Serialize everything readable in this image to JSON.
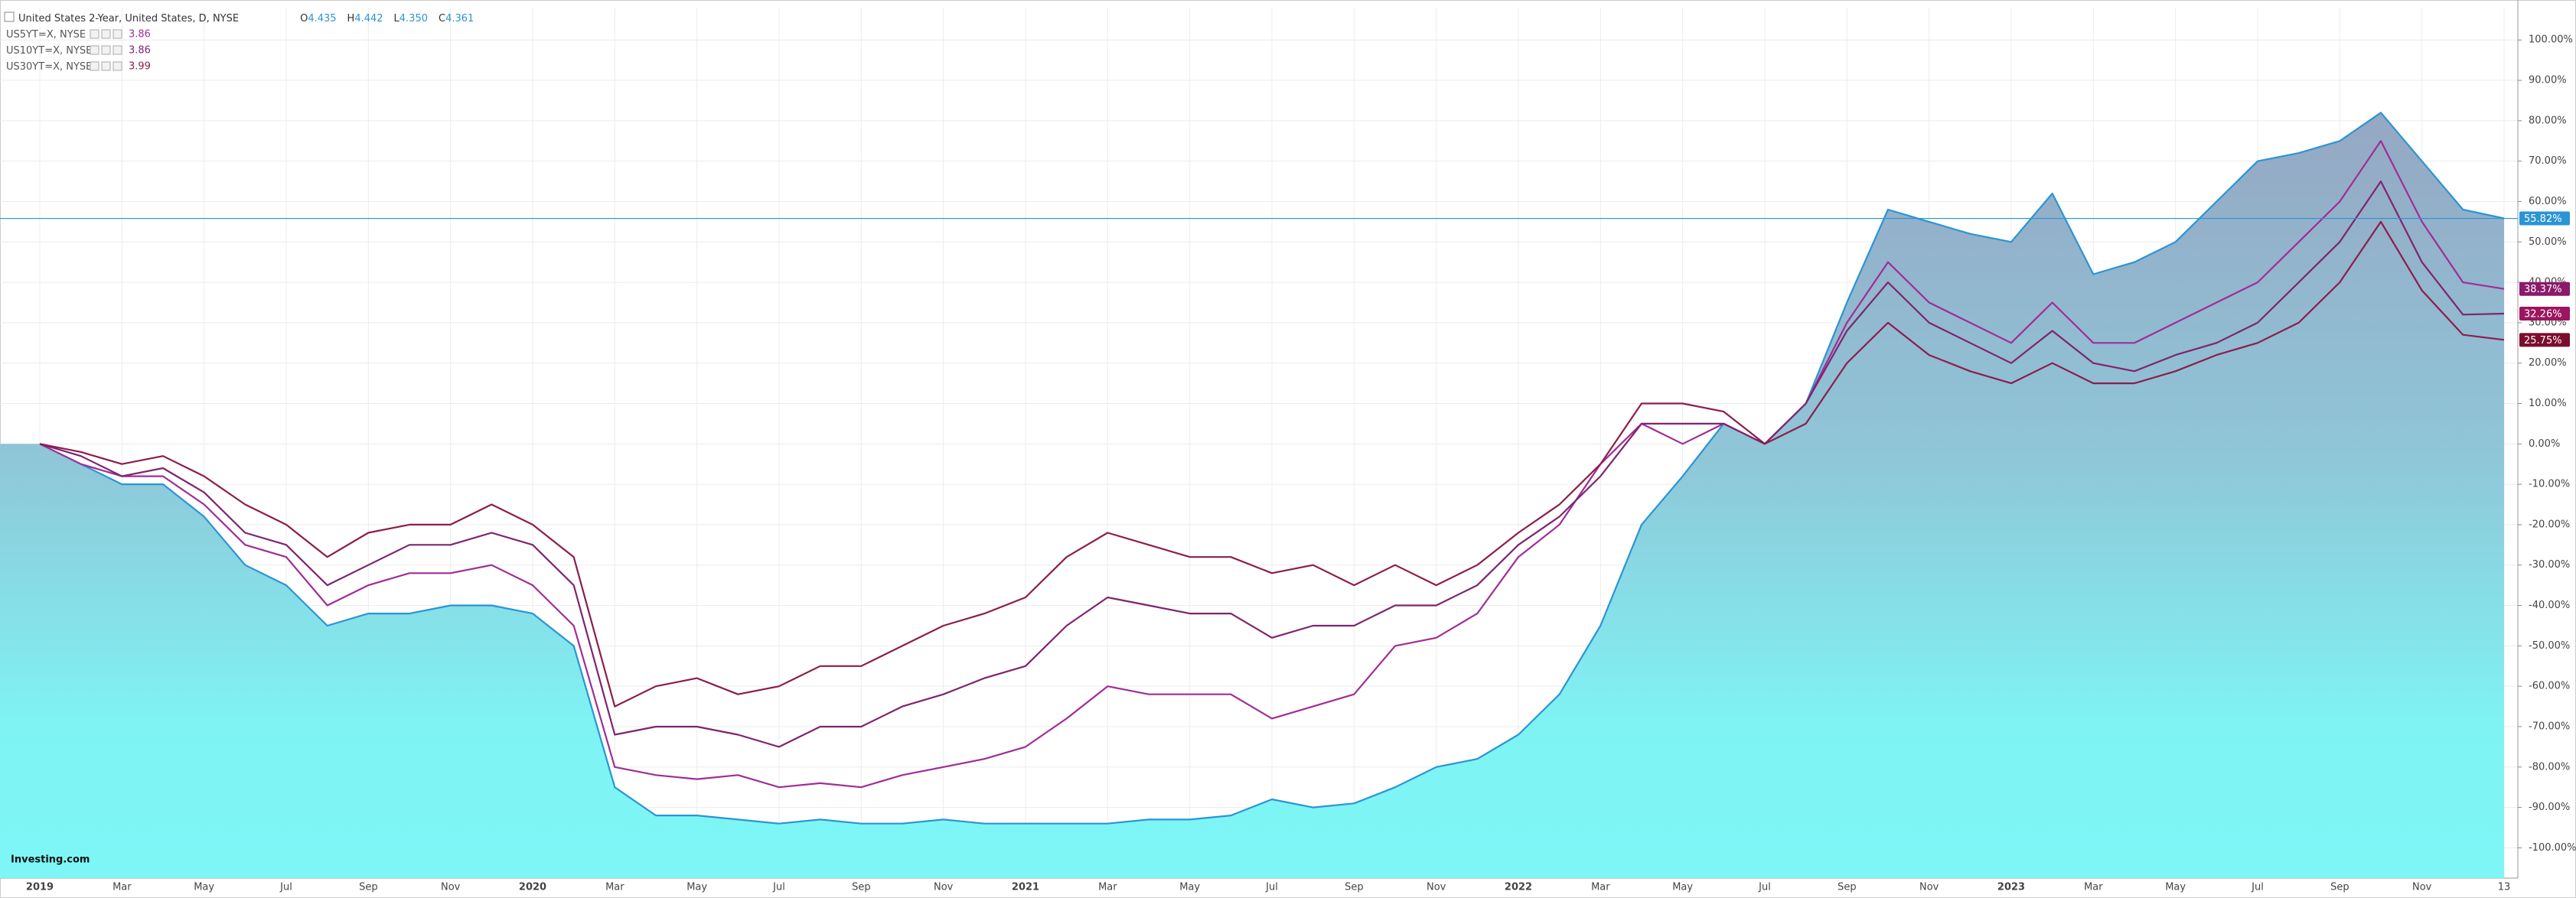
{
  "chart_data": {
    "type": "line",
    "ohlc": [
      {
        "label": "O",
        "value": "4.435"
      },
      {
        "label": "H",
        "value": "4.442"
      },
      {
        "label": "L",
        "value": "4.350"
      },
      {
        "label": "C",
        "value": "4.361"
      }
    ],
    "categories": [
      "2019",
      null,
      "Mar",
      null,
      "May",
      null,
      "Jul",
      null,
      "Sep",
      null,
      "Nov",
      null,
      "2020",
      null,
      "Mar",
      null,
      "May",
      null,
      "Jul",
      null,
      "Sep",
      null,
      "Nov",
      null,
      "2021",
      null,
      "Mar",
      null,
      "May",
      null,
      "Jul",
      null,
      "Sep",
      null,
      "Nov",
      null,
      "2022",
      null,
      "Mar",
      null,
      "May",
      null,
      "Jul",
      null,
      "Sep",
      null,
      "Nov",
      null,
      "2023",
      null,
      "Mar",
      null,
      "May",
      null,
      "Jul",
      null,
      "Sep",
      null,
      "Nov",
      null,
      "13"
    ],
    "series": [
      {
        "name": "United States 2-Year, United States, D, NYSE",
        "color": "#2a95d4",
        "area": true,
        "last_label": "55.82%",
        "values": [
          0,
          -5,
          -10,
          -10,
          -18,
          -30,
          -35,
          -45,
          -42,
          -42,
          -40,
          -40,
          -42,
          -50,
          -85,
          -92,
          -92,
          -93,
          -94,
          -93,
          -94,
          -94,
          -93,
          -94,
          -94,
          -94,
          -94,
          -93,
          -93,
          -92,
          -88,
          -90,
          -89,
          -85,
          -80,
          -78,
          -72,
          -62,
          -45,
          -20,
          -8,
          5,
          0,
          10,
          35,
          58,
          55,
          52,
          50,
          62,
          42,
          45,
          50,
          60,
          70,
          72,
          75,
          82,
          70,
          58,
          55.82
        ]
      },
      {
        "name": "US5YT=X, NYSE",
        "quote": "3.86",
        "color": "#a02d96",
        "tag_color": "#8b1a6b",
        "last_label": "38.37%",
        "values": [
          0,
          -5,
          -8,
          -8,
          -15,
          -25,
          -28,
          -40,
          -35,
          -32,
          -32,
          -30,
          -35,
          -45,
          -80,
          -82,
          -83,
          -82,
          -85,
          -84,
          -85,
          -82,
          -80,
          -78,
          -75,
          -68,
          -60,
          -62,
          -62,
          -62,
          -68,
          -65,
          -62,
          -50,
          -48,
          -42,
          -28,
          -20,
          -5,
          5,
          0,
          5,
          0,
          10,
          30,
          45,
          35,
          30,
          25,
          35,
          25,
          25,
          30,
          35,
          40,
          50,
          60,
          75,
          55,
          40,
          38.37
        ]
      },
      {
        "name": "US10YT=X, NYSE",
        "quote": "3.86",
        "color": "#7e2470",
        "tag_color": "#9b1561",
        "last_label": "32.26%",
        "values": [
          0,
          -3,
          -8,
          -6,
          -12,
          -22,
          -25,
          -35,
          -30,
          -25,
          -25,
          -22,
          -25,
          -35,
          -72,
          -70,
          -70,
          -72,
          -75,
          -70,
          -70,
          -65,
          -62,
          -58,
          -55,
          -45,
          -38,
          -40,
          -42,
          -42,
          -48,
          -45,
          -45,
          -40,
          -40,
          -35,
          -25,
          -18,
          -8,
          5,
          5,
          5,
          0,
          10,
          28,
          40,
          30,
          25,
          20,
          28,
          20,
          18,
          22,
          25,
          30,
          40,
          50,
          65,
          45,
          32,
          32.26
        ]
      },
      {
        "name": "US30YT=X, NYSE",
        "quote": "3.99",
        "color": "#8c1d4c",
        "tag_color": "#7a0e2e",
        "last_label": "25.75%",
        "values": [
          0,
          -2,
          -5,
          -3,
          -8,
          -15,
          -20,
          -28,
          -22,
          -20,
          -20,
          -15,
          -20,
          -28,
          -65,
          -60,
          -58,
          -62,
          -60,
          -55,
          -55,
          -50,
          -45,
          -42,
          -38,
          -28,
          -22,
          -25,
          -28,
          -28,
          -32,
          -30,
          -35,
          -30,
          -35,
          -30,
          -22,
          -15,
          -5,
          10,
          10,
          8,
          0,
          5,
          20,
          30,
          22,
          18,
          15,
          20,
          15,
          15,
          18,
          22,
          25,
          30,
          40,
          55,
          38,
          27,
          25.75
        ]
      }
    ],
    "ylim": [
      -107.5,
      108
    ],
    "yticks": [
      {
        "value": 100,
        "label": "100.00%"
      },
      {
        "value": 90,
        "label": "90.00%"
      },
      {
        "value": 80,
        "label": "80.00%"
      },
      {
        "value": 70,
        "label": "70.00%"
      },
      {
        "value": 60,
        "label": "60.00%"
      },
      {
        "value": 50,
        "label": "50.00%"
      },
      {
        "value": 40,
        "label": "40.00%"
      },
      {
        "value": 30,
        "label": "30.00%"
      },
      {
        "value": 20,
        "label": "20.00%"
      },
      {
        "value": 10,
        "label": "10.00%"
      },
      {
        "value": 0,
        "label": "0.00%"
      },
      {
        "value": -10,
        "label": "-10.00%"
      },
      {
        "value": -20,
        "label": "-20.00%"
      },
      {
        "value": -30,
        "label": "-30.00%"
      },
      {
        "value": -40,
        "label": "-40.00%"
      },
      {
        "value": -50,
        "label": "-50.00%"
      },
      {
        "value": -60,
        "label": "-60.00%"
      },
      {
        "value": -70,
        "label": "-70.00%"
      },
      {
        "value": -80,
        "label": "-80.00%"
      },
      {
        "value": -90,
        "label": "-90.00%"
      },
      {
        "value": -100,
        "label": "-100.00%"
      }
    ],
    "grid": true,
    "logo": "Investing.com"
  }
}
